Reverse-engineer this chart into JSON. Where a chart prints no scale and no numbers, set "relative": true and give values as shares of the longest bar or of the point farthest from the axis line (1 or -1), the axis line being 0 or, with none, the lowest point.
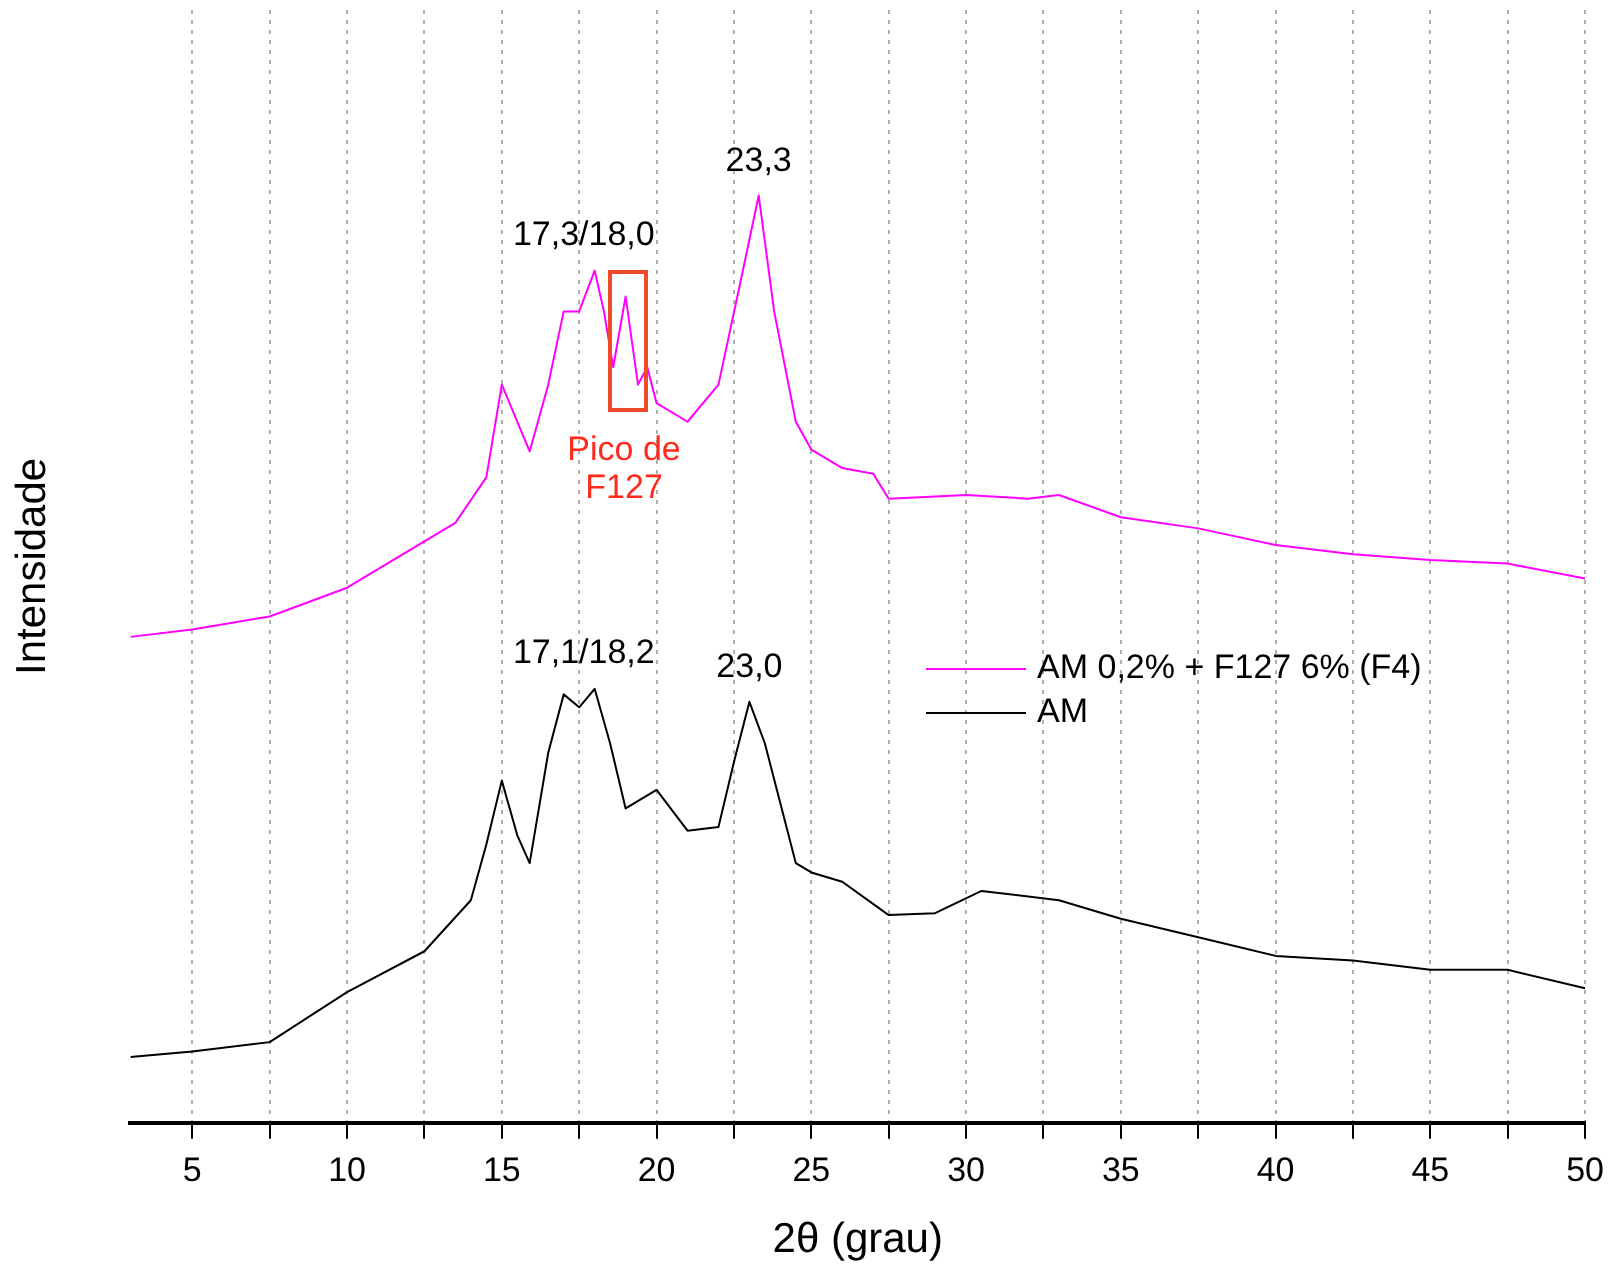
{
  "chart_data": {
    "type": "line",
    "relative": true,
    "xlabel": "2θ (grau)",
    "ylabel": "Intensidade",
    "xlim": [
      3,
      50
    ],
    "xticks": [
      5,
      {
        "value": 7.5,
        "label": null
      },
      10,
      {
        "value": 12.5,
        "label": null
      },
      15,
      {
        "value": 17.5,
        "label": null
      },
      20,
      {
        "value": 22.5,
        "label": null
      },
      25,
      {
        "value": 27.5,
        "label": null
      },
      30,
      {
        "value": 32.5,
        "label": null
      },
      35,
      {
        "value": 37.5,
        "label": null
      },
      40,
      {
        "value": 42.5,
        "label": null
      },
      45,
      {
        "value": 47.5,
        "label": null
      },
      50
    ],
    "grid": "x",
    "legend": "right",
    "marker": "none",
    "line_style": "solid",
    "series": [
      {
        "name": "AM 0,2% + F127 6% (F4)",
        "color": "#ff00ff",
        "x": [
          3,
          5,
          7.5,
          10,
          11,
          12,
          13.5,
          14.5,
          15,
          15.3,
          15.9,
          16.5,
          17,
          17.5,
          18,
          18.3,
          18.6,
          19,
          19.4,
          19.7,
          20,
          21,
          22,
          22.7,
          23.3,
          23.8,
          24.5,
          25,
          26,
          27,
          27.5,
          30,
          32,
          33,
          35,
          37.5,
          40,
          42.5,
          45,
          47.5,
          50
        ],
        "values": [
          0.524,
          0.532,
          0.546,
          0.577,
          0.597,
          0.617,
          0.647,
          0.696,
          0.796,
          0.772,
          0.724,
          0.796,
          0.875,
          0.875,
          0.919,
          0.875,
          0.815,
          0.891,
          0.796,
          0.815,
          0.776,
          0.756,
          0.796,
          0.905,
          1,
          0.875,
          0.756,
          0.726,
          0.706,
          0.7,
          0.673,
          0.677,
          0.673,
          0.677,
          0.653,
          0.641,
          0.623,
          0.613,
          0.607,
          0.603,
          0.587
        ]
      },
      {
        "name": "AM",
        "color": "#000000",
        "x": [
          3,
          5,
          7.5,
          10,
          12.5,
          14,
          14.5,
          15,
          15.5,
          15.9,
          16.5,
          17,
          17.5,
          18,
          18.5,
          19,
          20,
          21,
          22,
          22.5,
          23,
          23.5,
          24.5,
          25,
          26,
          27.5,
          29,
          30.5,
          33,
          35,
          37.5,
          40,
          42.5,
          45,
          47.5,
          50
        ],
        "values": [
          0.071,
          0.077,
          0.087,
          0.141,
          0.185,
          0.24,
          0.3,
          0.369,
          0.31,
          0.28,
          0.399,
          0.462,
          0.448,
          0.468,
          0.409,
          0.339,
          0.359,
          0.315,
          0.319,
          0.389,
          0.454,
          0.409,
          0.28,
          0.27,
          0.26,
          0.224,
          0.226,
          0.25,
          0.24,
          0.22,
          0.2,
          0.18,
          0.175,
          0.165,
          0.165,
          0.145
        ]
      }
    ],
    "annotations": [
      {
        "text": "17,3/18,0",
        "x": 17.65,
        "y": 0.919
      },
      {
        "text": "23,3",
        "x": 23.3,
        "y": 1
      },
      "Pico de F127",
      {
        "text": "17,1/18,2",
        "x": 17.65,
        "y": 0.468
      },
      {
        "text": "23,0",
        "x": 23,
        "y": 0.454
      }
    ]
  }
}
